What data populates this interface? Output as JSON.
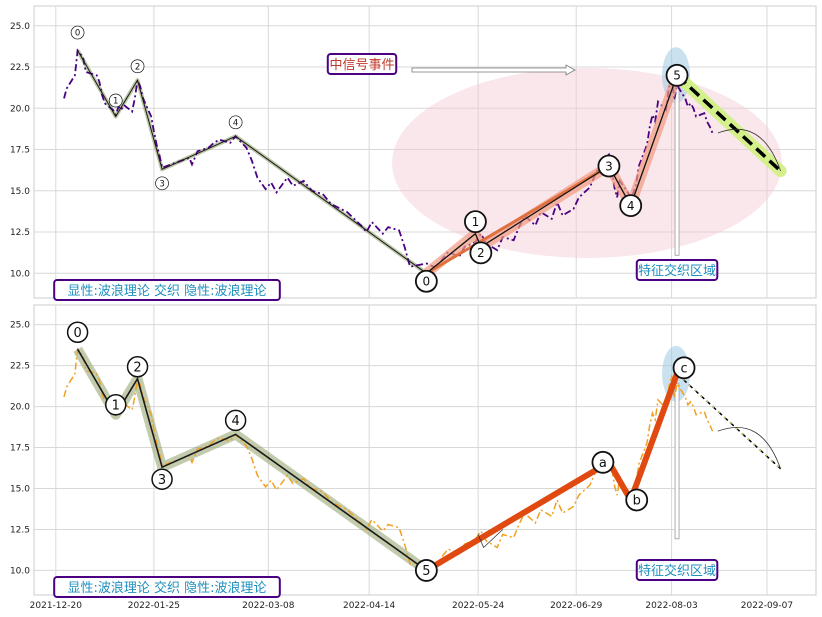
{
  "chart_data": [
    {
      "type": "line",
      "panel": "top",
      "ylim": [
        8.5,
        26.2
      ],
      "yticks": [
        10.0,
        12.5,
        15.0,
        17.5,
        20.0,
        22.5,
        25.0
      ],
      "ytick_labels": [
        "10.0",
        "12.5",
        "15.0",
        "17.5",
        "20.0",
        "22.5",
        "25.0"
      ],
      "grid": true,
      "price_color": "#4b0082",
      "price": [
        [
          "2021-12-23",
          20.6
        ],
        [
          "2021-12-24",
          21.2
        ],
        [
          "2021-12-27",
          22.0
        ],
        [
          "2021-12-28",
          23.5
        ],
        [
          "2021-12-29",
          23.3
        ],
        [
          "2021-12-30",
          23.1
        ],
        [
          "2021-12-31",
          22.2
        ],
        [
          "2022-01-04",
          22.0
        ],
        [
          "2022-01-05",
          21.6
        ],
        [
          "2022-01-06",
          20.8
        ],
        [
          "2022-01-07",
          20.3
        ],
        [
          "2022-01-10",
          19.9
        ],
        [
          "2022-01-11",
          19.6
        ],
        [
          "2022-01-12",
          20.1
        ],
        [
          "2022-01-13",
          19.9
        ],
        [
          "2022-01-14",
          20.2
        ],
        [
          "2022-01-17",
          19.8
        ],
        [
          "2022-01-18",
          20.6
        ],
        [
          "2022-01-19",
          21.7
        ],
        [
          "2022-01-20",
          21.3
        ],
        [
          "2022-01-21",
          20.6
        ],
        [
          "2022-01-24",
          19.5
        ],
        [
          "2022-01-25",
          18.6
        ],
        [
          "2022-01-26",
          17.8
        ],
        [
          "2022-01-27",
          17.2
        ],
        [
          "2022-01-28",
          16.4
        ],
        [
          "2022-02-07",
          17.0
        ],
        [
          "2022-02-08",
          16.6
        ],
        [
          "2022-02-09",
          17.0
        ],
        [
          "2022-02-10",
          17.4
        ],
        [
          "2022-02-14",
          17.6
        ],
        [
          "2022-02-16",
          17.9
        ],
        [
          "2022-02-18",
          18.1
        ],
        [
          "2022-02-22",
          17.9
        ],
        [
          "2022-02-24",
          18.3
        ],
        [
          "2022-02-28",
          17.6
        ],
        [
          "2022-03-02",
          16.8
        ],
        [
          "2022-03-04",
          15.8
        ],
        [
          "2022-03-07",
          15.1
        ],
        [
          "2022-03-09",
          15.5
        ],
        [
          "2022-03-11",
          14.9
        ],
        [
          "2022-03-15",
          15.8
        ],
        [
          "2022-03-17",
          15.3
        ],
        [
          "2022-03-21",
          15.6
        ],
        [
          "2022-03-24",
          15.0
        ],
        [
          "2022-03-28",
          14.8
        ],
        [
          "2022-03-31",
          14.2
        ],
        [
          "2022-04-06",
          13.7
        ],
        [
          "2022-04-11",
          12.9
        ],
        [
          "2022-04-13",
          12.5
        ],
        [
          "2022-04-15",
          13.1
        ],
        [
          "2022-04-19",
          12.4
        ],
        [
          "2022-04-21",
          12.8
        ],
        [
          "2022-04-25",
          12.6
        ],
        [
          "2022-04-27",
          11.6
        ],
        [
          "2022-04-29",
          10.4
        ],
        [
          "2022-05-05",
          10.6
        ],
        [
          "2022-05-09",
          10.3
        ],
        [
          "2022-05-11",
          10.9
        ],
        [
          "2022-05-13",
          11.3
        ],
        [
          "2022-05-17",
          11.0
        ],
        [
          "2022-05-19",
          11.6
        ],
        [
          "2022-05-23",
          11.9
        ],
        [
          "2022-05-25",
          12.4
        ],
        [
          "2022-05-27",
          11.8
        ],
        [
          "2022-05-31",
          11.4
        ],
        [
          "2022-06-02",
          12.2
        ],
        [
          "2022-06-06",
          12.0
        ],
        [
          "2022-06-08",
          12.8
        ],
        [
          "2022-06-10",
          13.5
        ],
        [
          "2022-06-14",
          12.9
        ],
        [
          "2022-06-16",
          13.7
        ],
        [
          "2022-06-20",
          13.3
        ],
        [
          "2022-06-22",
          14.3
        ],
        [
          "2022-06-24",
          13.5
        ],
        [
          "2022-06-28",
          13.9
        ],
        [
          "2022-06-30",
          14.6
        ],
        [
          "2022-07-04",
          15.2
        ],
        [
          "2022-07-06",
          16.0
        ],
        [
          "2022-07-08",
          16.7
        ],
        [
          "2022-07-11",
          17.2
        ],
        [
          "2022-07-12",
          16.4
        ],
        [
          "2022-07-13",
          15.2
        ],
        [
          "2022-07-14",
          14.6
        ],
        [
          "2022-07-15",
          15.6
        ],
        [
          "2022-07-18",
          14.9
        ],
        [
          "2022-07-19",
          14.4
        ],
        [
          "2022-07-21",
          15.4
        ],
        [
          "2022-07-22",
          16.5
        ],
        [
          "2022-07-25",
          17.8
        ],
        [
          "2022-07-26",
          18.9
        ],
        [
          "2022-07-27",
          19.6
        ],
        [
          "2022-07-28",
          19.2
        ],
        [
          "2022-07-29",
          20.4
        ],
        [
          "2022-08-01",
          19.9
        ],
        [
          "2022-08-02",
          21.2
        ],
        [
          "2022-08-03",
          21.9
        ],
        [
          "2022-08-04",
          20.5
        ],
        [
          "2022-08-05",
          21.4
        ],
        [
          "2022-08-08",
          20.6
        ],
        [
          "2022-08-09",
          20.1
        ],
        [
          "2022-08-10",
          20.3
        ],
        [
          "2022-08-11",
          20.0
        ],
        [
          "2022-08-12",
          19.5
        ],
        [
          "2022-08-15",
          19.7
        ],
        [
          "2022-08-16",
          19.2
        ],
        [
          "2022-08-17",
          18.9
        ],
        [
          "2022-08-18",
          18.5
        ]
      ],
      "wave_points": [
        {
          "date": "2021-12-28",
          "value": 23.5,
          "label": "0"
        },
        {
          "date": "2022-01-11",
          "value": 19.5,
          "label": "1"
        },
        {
          "date": "2022-01-19",
          "value": 21.7,
          "label": "2"
        },
        {
          "date": "2022-01-28",
          "value": 16.3,
          "label": "3"
        },
        {
          "date": "2022-02-24",
          "value": 18.3,
          "label": "4"
        },
        {
          "date": "2022-05-05",
          "value": 10.0,
          "label": "5"
        }
      ],
      "up_wave_points": [
        {
          "date": "2022-05-05",
          "value": 10.0,
          "label": "0"
        },
        {
          "date": "2022-05-23",
          "value": 12.4,
          "label": "1"
        },
        {
          "date": "2022-05-25",
          "value": 11.6,
          "label": "2"
        },
        {
          "date": "2022-07-11",
          "value": 16.5,
          "label": "3"
        },
        {
          "date": "2022-07-19",
          "value": 14.1,
          "label": "4"
        },
        {
          "date": "2022-08-05",
          "value": 22.0,
          "label": "5"
        }
      ],
      "projection": {
        "from": [
          "2022-08-05",
          22.0
        ],
        "to": [
          "2022-09-12",
          16.2
        ]
      },
      "annotations": {
        "bottom_left": "显性:波浪理论 交织 隐性:波浪理论",
        "event": "中信号事件",
        "zone": "特征交织区域"
      }
    },
    {
      "type": "line",
      "panel": "bottom",
      "ylim": [
        8.5,
        26.2
      ],
      "yticks": [
        10.0,
        12.5,
        15.0,
        17.5,
        20.0,
        22.5,
        25.0
      ],
      "ytick_labels": [
        "10.0",
        "12.5",
        "15.0",
        "17.5",
        "20.0",
        "22.5",
        "25.0"
      ],
      "xticks": [
        "2021-12-20",
        "2022-01-25",
        "2022-03-08",
        "2022-04-14",
        "2022-05-24",
        "2022-06-29",
        "2022-08-03",
        "2022-09-07"
      ],
      "xtick_labels": [
        "2021-12-20",
        "2022-01-25",
        "2022-03-08",
        "2022-04-14",
        "2022-05-24",
        "2022-06-29",
        "2022-08-03",
        "2022-09-07"
      ],
      "grid": true,
      "price_color": "#f0a020",
      "price_same_as_top": true,
      "wave_points": [
        {
          "date": "2021-12-28",
          "value": 23.5,
          "label": "0"
        },
        {
          "date": "2022-01-11",
          "value": 19.5,
          "label": "1"
        },
        {
          "date": "2022-01-19",
          "value": 21.7,
          "label": "2"
        },
        {
          "date": "2022-01-28",
          "value": 16.3,
          "label": "3"
        },
        {
          "date": "2022-02-24",
          "value": 18.3,
          "label": "4"
        },
        {
          "date": "2022-05-05",
          "value": 10.0,
          "label": "5"
        }
      ],
      "up_wave_points": [
        {
          "date": "2022-05-05",
          "value": 10.0,
          "label": "5"
        },
        {
          "date": "2022-07-11",
          "value": 16.6,
          "label": "a"
        },
        {
          "date": "2022-07-19",
          "value": 14.3,
          "label": "b"
        },
        {
          "date": "2022-08-05",
          "value": 22.0,
          "label": "c"
        }
      ],
      "projection": {
        "from": [
          "2022-08-05",
          22.0
        ],
        "to": [
          "2022-09-12",
          16.2
        ]
      },
      "annotations": {
        "bottom_left": "显性:波浪理论 交织 隐性:波浪理论",
        "zone": "特征交织区域"
      }
    }
  ],
  "colors": {
    "frame": "#cccccc",
    "grid": "#d8d8d8",
    "up_wave": "#e04a10",
    "up_band": "#f29a80",
    "down_band": "#8fa36a",
    "label_box_border": "#4b0082",
    "label_box_text": "#1f8fbf",
    "event_text": "#c0392b",
    "ellipse": "#f3c9d3",
    "zone_glow": "#9ecae1",
    "projection_band": "#d4f08a"
  }
}
